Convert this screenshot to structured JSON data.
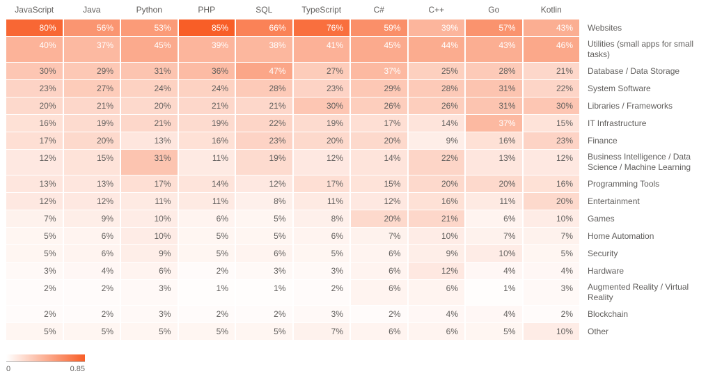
{
  "chart_data": {
    "type": "heatmap",
    "title": "",
    "value_format": "percent",
    "columns": [
      "JavaScript",
      "Java",
      "Python",
      "PHP",
      "SQL",
      "TypeScript",
      "C#",
      "C++",
      "Go",
      "Kotlin"
    ],
    "rows": [
      {
        "label": "Websites",
        "values": [
          80,
          56,
          53,
          85,
          66,
          76,
          59,
          39,
          57,
          43
        ]
      },
      {
        "label": "Utilities (small apps for small tasks)",
        "values": [
          40,
          37,
          45,
          39,
          38,
          41,
          45,
          44,
          43,
          46
        ]
      },
      {
        "label": "Database / Data Storage",
        "values": [
          30,
          29,
          31,
          36,
          47,
          27,
          37,
          25,
          28,
          21
        ]
      },
      {
        "label": "System Software",
        "values": [
          23,
          27,
          24,
          24,
          28,
          23,
          29,
          28,
          31,
          22
        ]
      },
      {
        "label": "Libraries / Frameworks",
        "values": [
          20,
          21,
          20,
          21,
          21,
          30,
          26,
          26,
          31,
          30
        ]
      },
      {
        "label": "IT Infrastructure",
        "values": [
          16,
          19,
          21,
          19,
          22,
          19,
          17,
          14,
          37,
          15
        ]
      },
      {
        "label": "Finance",
        "values": [
          17,
          20,
          13,
          16,
          23,
          20,
          20,
          9,
          16,
          23
        ]
      },
      {
        "label": "Business Intelligence / Data Science / Machine Learning",
        "values": [
          12,
          15,
          31,
          11,
          19,
          12,
          14,
          22,
          13,
          12
        ]
      },
      {
        "label": "Programming Tools",
        "values": [
          13,
          13,
          17,
          14,
          12,
          17,
          15,
          20,
          20,
          16
        ]
      },
      {
        "label": "Entertainment",
        "values": [
          12,
          12,
          11,
          11,
          8,
          11,
          12,
          16,
          11,
          20
        ]
      },
      {
        "label": "Games",
        "values": [
          7,
          9,
          10,
          6,
          5,
          8,
          20,
          21,
          6,
          10
        ]
      },
      {
        "label": "Home Automation",
        "values": [
          5,
          6,
          10,
          5,
          5,
          6,
          7,
          10,
          7,
          7
        ]
      },
      {
        "label": "Security",
        "values": [
          5,
          6,
          9,
          5,
          6,
          5,
          6,
          9,
          10,
          5
        ]
      },
      {
        "label": "Hardware",
        "values": [
          3,
          4,
          6,
          2,
          3,
          3,
          6,
          12,
          4,
          4
        ]
      },
      {
        "label": "Augmented Reality / Virtual Reality",
        "values": [
          2,
          2,
          3,
          1,
          1,
          2,
          6,
          6,
          1,
          3
        ]
      },
      {
        "label": "Blockchain",
        "values": [
          2,
          2,
          3,
          2,
          2,
          3,
          2,
          4,
          4,
          2
        ]
      },
      {
        "label": "Other",
        "values": [
          5,
          5,
          5,
          5,
          5,
          7,
          6,
          6,
          5,
          10
        ]
      }
    ],
    "legend": {
      "min_label": "0",
      "max_label": "0.85",
      "position": "bottom-left"
    },
    "colors": {
      "scale_min": "#FFFFFF",
      "scale_max": "#F85E27",
      "text_dark": "#605E5C",
      "text_light": "#FFFFFF"
    },
    "scale_max_value": 0.85,
    "white_text_threshold": 37,
    "layout_hints": {
      "grid": "off",
      "row_labels": "right",
      "column_labels": "top"
    }
  }
}
